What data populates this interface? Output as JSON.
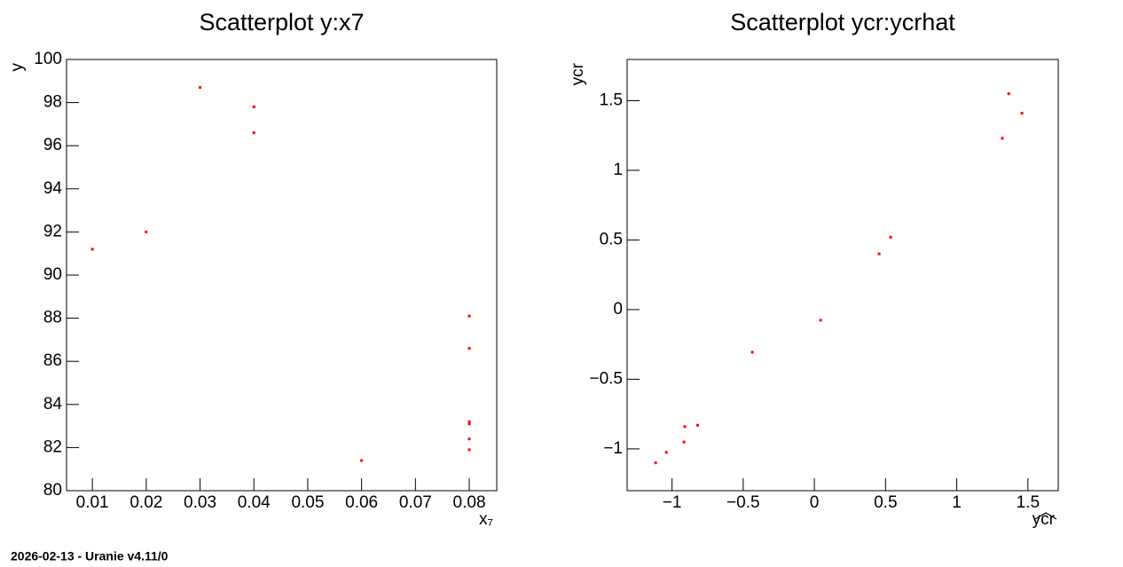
{
  "chart_data": [
    {
      "type": "scatter",
      "title": "Scatterplot y:x7",
      "xlabel": "x₇",
      "ylabel": "y",
      "color": "#ff0000",
      "x": [
        0.01,
        0.02,
        0.03,
        0.04,
        0.04,
        0.06,
        0.08,
        0.08,
        0.08,
        0.08,
        0.08,
        0.08
      ],
      "values": [
        91.2,
        92.0,
        98.7,
        97.8,
        96.6,
        81.4,
        88.1,
        86.6,
        83.2,
        83.1,
        82.4,
        81.9
      ],
      "xlim": [
        0.0052,
        0.0851
      ],
      "ylim": [
        80,
        100
      ],
      "xticks": [
        0.01,
        0.02,
        0.03,
        0.04,
        0.05,
        0.06,
        0.07,
        0.08
      ],
      "yticks": [
        80,
        82,
        84,
        86,
        88,
        90,
        92,
        94,
        96,
        98,
        100
      ]
    },
    {
      "type": "scatter",
      "title": "Scatterplot ycr:ycrhat",
      "xlabel": "ycr",
      "ylabel": "ycr",
      "color": "#ff0000",
      "x": [
        -1.115,
        -1.04,
        -0.916,
        -0.91,
        -0.82,
        -0.436,
        0.044,
        0.455,
        0.536,
        1.32,
        1.365,
        1.458
      ],
      "values": [
        -1.1,
        -1.025,
        -0.95,
        -0.84,
        -0.83,
        -0.306,
        -0.076,
        0.4,
        0.52,
        1.23,
        1.55,
        1.41
      ],
      "xlim": [
        -1.315,
        1.713
      ],
      "ylim": [
        -1.3,
        1.796
      ],
      "xticks": [
        {
          "value": -1,
          "label": "−1"
        },
        {
          "value": -0.5,
          "label": "−0.5"
        },
        0,
        0.5,
        1,
        1.5
      ],
      "yticks": [
        {
          "value": -1,
          "label": "−1"
        },
        {
          "value": -0.5,
          "label": "−0.5"
        },
        0,
        0.5,
        1,
        1.5
      ]
    }
  ],
  "footer": "2026-02-13 - Uranie v4.11/0"
}
